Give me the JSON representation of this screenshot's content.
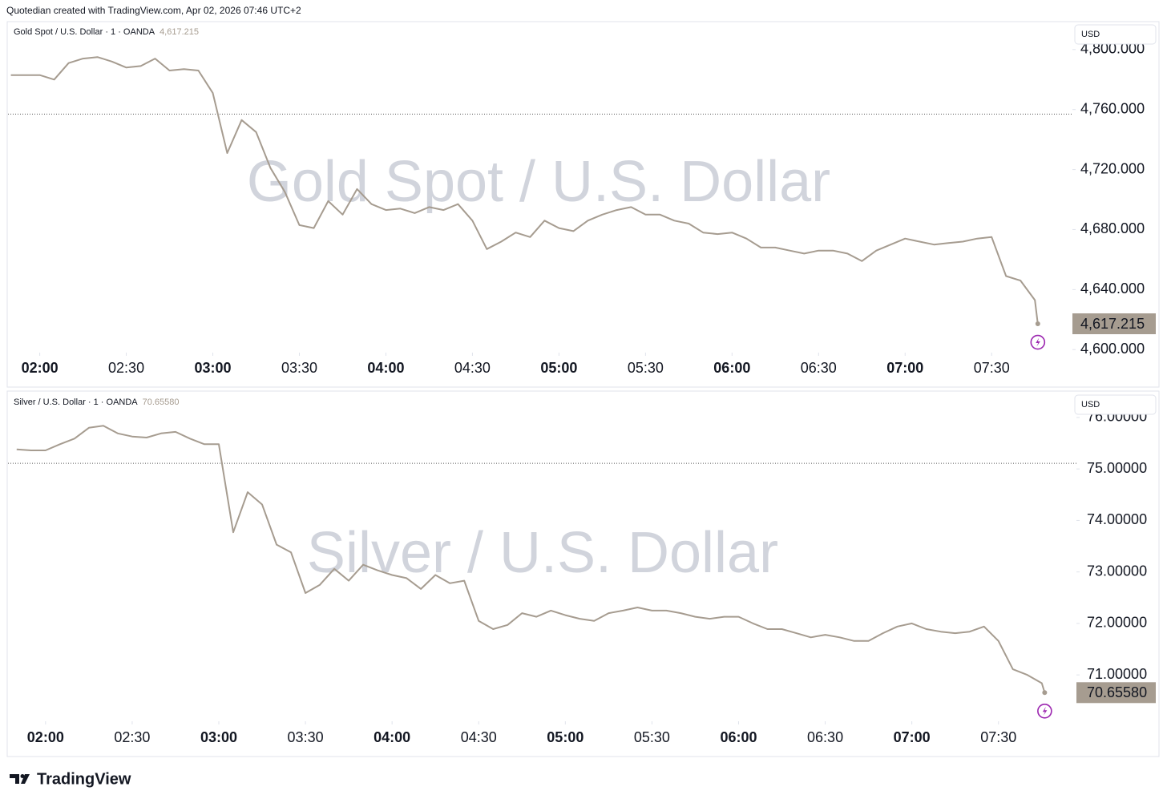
{
  "header": "Quotedian created with TradingView.com, Apr 02, 2026 07:46 UTC+2",
  "footer": "TradingView",
  "chart_data": [
    {
      "type": "line",
      "watermark": "Gold Spot / U.S. Dollar",
      "currency": "USD",
      "x": [
        "01:50",
        "01:55",
        "02:00",
        "02:05",
        "02:10",
        "02:15",
        "02:20",
        "02:25",
        "02:30",
        "02:35",
        "02:40",
        "02:45",
        "02:50",
        "02:55",
        "03:00",
        "03:05",
        "03:10",
        "03:15",
        "03:20",
        "03:25",
        "03:30",
        "03:35",
        "03:40",
        "03:45",
        "03:50",
        "03:55",
        "04:00",
        "04:05",
        "04:10",
        "04:15",
        "04:20",
        "04:25",
        "04:30",
        "04:35",
        "04:40",
        "04:45",
        "04:50",
        "04:55",
        "05:00",
        "05:05",
        "05:10",
        "05:15",
        "05:20",
        "05:25",
        "05:30",
        "05:35",
        "05:40",
        "05:45",
        "05:50",
        "05:55",
        "06:00",
        "06:05",
        "06:10",
        "06:15",
        "06:20",
        "06:25",
        "06:30",
        "06:35",
        "06:40",
        "06:45",
        "06:50",
        "06:55",
        "07:00",
        "07:05",
        "07:10",
        "07:15",
        "07:20",
        "07:25",
        "07:30",
        "07:35",
        "07:40",
        "07:45",
        "07:46"
      ],
      "series": [
        {
          "name": "Gold Spot / U.S. Dollar · 1 · OANDA",
          "color": "#a69c90",
          "values": [
            4783,
            4783,
            4783,
            4780,
            4791,
            4794,
            4795,
            4792,
            4788,
            4789,
            4794,
            4786,
            4787,
            4786,
            4771,
            4731,
            4753,
            4745,
            4721,
            4705,
            4683,
            4681,
            4699,
            4690,
            4707,
            4697,
            4693,
            4694,
            4691,
            4695,
            4693,
            4697,
            4686,
            4667,
            4672,
            4678,
            4675,
            4686,
            4681,
            4679,
            4686,
            4690,
            4693,
            4695,
            4690,
            4690,
            4686,
            4684,
            4678,
            4677,
            4678,
            4674,
            4668,
            4668,
            4666,
            4664,
            4666,
            4666,
            4664,
            4659,
            4666,
            4670,
            4674,
            4672,
            4670,
            4671,
            4672,
            4674,
            4675,
            4649,
            4646,
            4633,
            4617.215
          ]
        }
      ],
      "last_price": {
        "value": 4617.215,
        "label": "4,617.215"
      },
      "reference_line": 4757,
      "xlim": [
        "01:49",
        "07:58"
      ],
      "xticks": [
        "02:00",
        "02:30",
        "03:00",
        "03:30",
        "04:00",
        "04:30",
        "05:00",
        "05:30",
        "06:00",
        "06:30",
        "07:00",
        "07:30"
      ],
      "ylim": [
        4598,
        4817
      ],
      "yticks": [
        {
          "value": 4600,
          "label": "4,600.000"
        },
        {
          "value": 4640,
          "label": "4,640.000"
        },
        {
          "value": 4680,
          "label": "4,680.000"
        },
        {
          "value": 4720,
          "label": "4,720.000"
        },
        {
          "value": 4760,
          "label": "4,760.000"
        },
        {
          "value": 4800,
          "label": "4,800.000"
        }
      ],
      "grid": false
    },
    {
      "type": "line",
      "watermark": "Silver / U.S. Dollar",
      "currency": "USD",
      "x": [
        "01:50",
        "01:55",
        "02:00",
        "02:05",
        "02:10",
        "02:15",
        "02:20",
        "02:25",
        "02:30",
        "02:35",
        "02:40",
        "02:45",
        "02:50",
        "02:55",
        "03:00",
        "03:05",
        "03:10",
        "03:15",
        "03:20",
        "03:25",
        "03:30",
        "03:35",
        "03:40",
        "03:45",
        "03:50",
        "03:55",
        "04:00",
        "04:05",
        "04:10",
        "04:15",
        "04:20",
        "04:25",
        "04:30",
        "04:35",
        "04:40",
        "04:45",
        "04:50",
        "04:55",
        "05:00",
        "05:05",
        "05:10",
        "05:15",
        "05:20",
        "05:25",
        "05:30",
        "05:35",
        "05:40",
        "05:45",
        "05:50",
        "05:55",
        "06:00",
        "06:05",
        "06:10",
        "06:15",
        "06:20",
        "06:25",
        "06:30",
        "06:35",
        "06:40",
        "06:45",
        "06:50",
        "06:55",
        "07:00",
        "07:05",
        "07:10",
        "07:15",
        "07:20",
        "07:25",
        "07:30",
        "07:35",
        "07:40",
        "07:45",
        "07:46"
      ],
      "series": [
        {
          "name": "Silver / U.S. Dollar · 1 · OANDA",
          "color": "#a69c90",
          "values": [
            75.38,
            75.36,
            75.36,
            75.48,
            75.59,
            75.8,
            75.84,
            75.69,
            75.63,
            75.61,
            75.69,
            75.72,
            75.59,
            75.48,
            75.48,
            73.77,
            74.55,
            74.31,
            73.53,
            73.38,
            72.59,
            72.75,
            73.06,
            72.83,
            73.14,
            73.03,
            72.94,
            72.88,
            72.67,
            72.94,
            72.78,
            72.83,
            72.05,
            71.89,
            71.97,
            72.2,
            72.13,
            72.25,
            72.16,
            72.09,
            72.05,
            72.2,
            72.25,
            72.31,
            72.25,
            72.25,
            72.2,
            72.13,
            72.09,
            72.13,
            72.13,
            72,
            71.89,
            71.89,
            71.81,
            71.73,
            71.78,
            71.73,
            71.66,
            71.66,
            71.81,
            71.94,
            72,
            71.89,
            71.84,
            71.81,
            71.84,
            71.94,
            71.66,
            71.11,
            71,
            70.84,
            70.6558
          ]
        }
      ],
      "last_price": {
        "value": 70.6558,
        "label": "70.65580"
      },
      "reference_line": 75.11,
      "xlim": [
        "01:47",
        "07:57"
      ],
      "xticks": [
        "02:00",
        "02:30",
        "03:00",
        "03:30",
        "04:00",
        "04:30",
        "05:00",
        "05:30",
        "06:00",
        "06:30",
        "07:00",
        "07:30"
      ],
      "ylim": [
        70.1,
        76.45
      ],
      "yticks": [
        {
          "value": 71,
          "label": "71.00000"
        },
        {
          "value": 72,
          "label": "72.00000"
        },
        {
          "value": 73,
          "label": "73.00000"
        },
        {
          "value": 74,
          "label": "74.00000"
        },
        {
          "value": 75,
          "label": "75.00000"
        },
        {
          "value": 76,
          "label": "76.00000"
        }
      ],
      "grid": false
    }
  ]
}
